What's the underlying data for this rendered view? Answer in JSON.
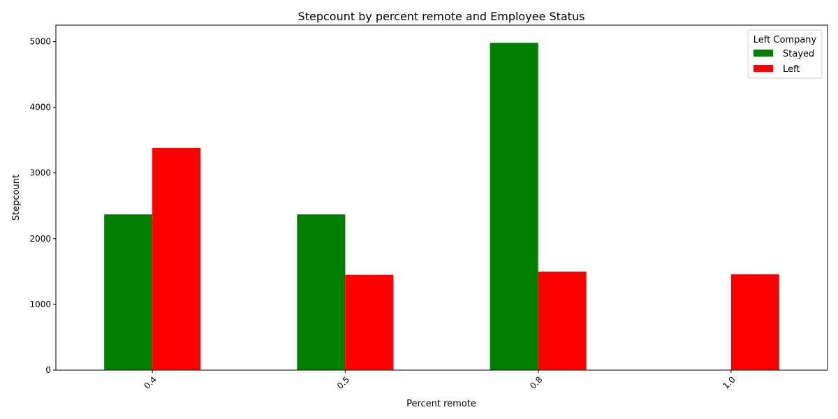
{
  "chart_data": {
    "type": "bar",
    "title": "Stepcount by percent remote and Employee Status",
    "xlabel": "Percent remote",
    "ylabel": "Stepcount",
    "categories": [
      "0.4",
      "0.5",
      "0.8",
      "1.0"
    ],
    "series": [
      {
        "name": "Stayed",
        "color": "#008000",
        "values": [
          2370,
          2370,
          4980,
          null
        ]
      },
      {
        "name": "Left",
        "color": "#ff0000",
        "values": [
          3380,
          1450,
          1500,
          1460
        ]
      }
    ],
    "ylim": [
      0,
      5250
    ],
    "yticks": [
      0,
      1000,
      2000,
      3000,
      4000,
      5000
    ],
    "grid": false,
    "legend": {
      "title": "Left Company",
      "position": "top-right"
    }
  }
}
